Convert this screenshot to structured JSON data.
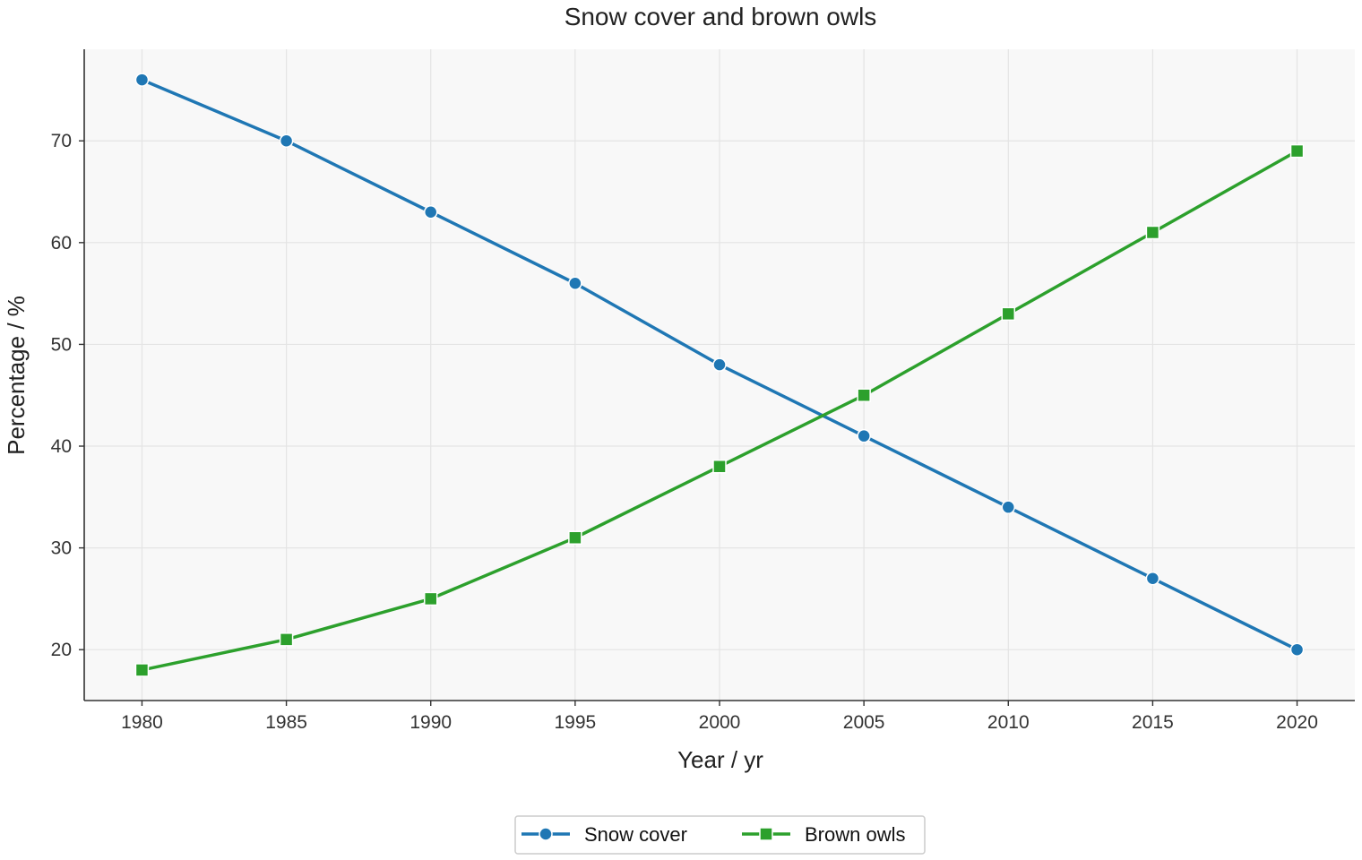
{
  "chart_data": {
    "type": "line",
    "title": "Snow cover and brown owls",
    "xlabel": "Year / yr",
    "ylabel": "Percentage / %",
    "x": [
      1980,
      1985,
      1990,
      1995,
      2000,
      2005,
      2010,
      2015,
      2020
    ],
    "xlim": [
      1978,
      2022
    ],
    "ylim": [
      15,
      79
    ],
    "xticks": [
      1980,
      1985,
      1990,
      1995,
      2000,
      2005,
      2010,
      2015,
      2020
    ],
    "yticks": [
      20,
      30,
      40,
      50,
      60,
      70
    ],
    "grid": true,
    "legend_position": "bottom-center",
    "series": [
      {
        "name": "Snow cover",
        "color": "#1f77b4",
        "marker": "circle",
        "values": [
          76,
          70,
          63,
          56,
          48,
          41,
          34,
          27,
          20
        ]
      },
      {
        "name": "Brown owls",
        "color": "#2ca02c",
        "marker": "square",
        "values": [
          18,
          21,
          25,
          31,
          38,
          45,
          53,
          61,
          69
        ]
      }
    ]
  },
  "colors": {
    "plot_background": "#f8f8f8",
    "grid": "#e4e4e4",
    "axis": "#333333"
  }
}
